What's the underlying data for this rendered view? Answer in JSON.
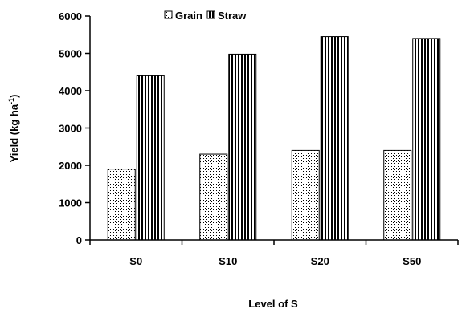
{
  "chart_data": {
    "type": "bar",
    "categories": [
      "S0",
      "S10",
      "S20",
      "S50"
    ],
    "series": [
      {
        "name": "Grain",
        "values": [
          1900,
          2300,
          2400,
          2400
        ],
        "pattern": "dots"
      },
      {
        "name": "Straw",
        "values": [
          4400,
          4980,
          5450,
          5400
        ],
        "pattern": "vertical-stripes"
      }
    ],
    "title": "",
    "xlabel": "Level of S",
    "ylabel_main": "Yield (kg ha",
    "ylabel_sup": "-1",
    "ylabel_close": ")",
    "ylim": [
      0,
      6000
    ],
    "yticks": [
      "0",
      "1000",
      "2000",
      "3000",
      "4000",
      "5000",
      "6000"
    ],
    "grid": false,
    "legend_position": "top-center",
    "colors": {
      "bar_fill": "#ffffff",
      "stroke": "#000000"
    }
  }
}
